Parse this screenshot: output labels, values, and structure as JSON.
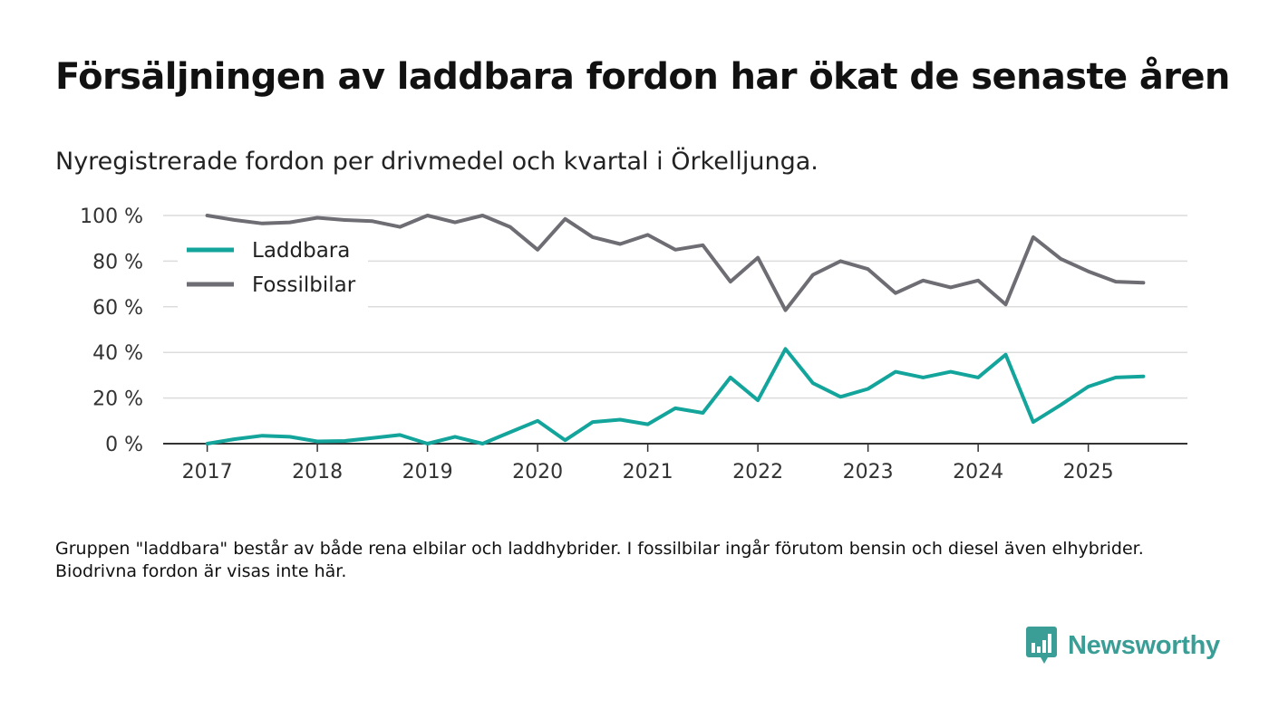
{
  "title": "Försäljningen av laddbara fordon har ökat de senaste åren",
  "subtitle": "Nyregistrerade fordon per drivmedel och kvartal i Örkelljunga.",
  "footnote": "Gruppen \"laddbara\" består av både rena elbilar och laddhybrider. I fossilbilar ingår förutom bensin och diesel även elhybrider. Biodrivna fordon är visas inte här.",
  "brand": {
    "name": "Newsworthy",
    "color": "#3a9e96"
  },
  "colors": {
    "laddbara": "#13a59c",
    "fossil": "#6e6d73",
    "grid": "#dcdcdc",
    "axis": "#333333"
  },
  "chart_data": {
    "type": "line",
    "title": "Försäljningen av laddbara fordon har ökat de senaste åren",
    "xlabel": "",
    "ylabel": "",
    "x_start": 2017,
    "x_step": 0.25,
    "xlim": [
      2016.6,
      2025.9
    ],
    "ylim": [
      0,
      100
    ],
    "y_ticks": [
      0,
      20,
      40,
      60,
      80,
      100
    ],
    "y_tick_labels": [
      "0 %",
      "20 %",
      "40 %",
      "60 %",
      "80 %",
      "100 %"
    ],
    "x_ticks": [
      2017,
      2018,
      2019,
      2020,
      2021,
      2022,
      2023,
      2024,
      2025
    ],
    "x_tick_labels": [
      "2017",
      "2018",
      "2019",
      "2020",
      "2021",
      "2022",
      "2023",
      "2024",
      "2025"
    ],
    "legend_position": "top-left",
    "series": [
      {
        "name": "Laddbara",
        "color": "#13a59c",
        "values": [
          0,
          2,
          3.5,
          3,
          1,
          1.2,
          2.5,
          3.8,
          0,
          3,
          0,
          5,
          10,
          1.5,
          9.5,
          10.5,
          8.5,
          15.5,
          13.5,
          29,
          19,
          41.5,
          26.5,
          20.5,
          24,
          31.5,
          29,
          31.5,
          29,
          39,
          9.5,
          17,
          25,
          29,
          29.5
        ]
      },
      {
        "name": "Fossilbilar",
        "color": "#6e6d73",
        "values": [
          100,
          98,
          96.5,
          97,
          99,
          98,
          97.5,
          95,
          100,
          97,
          100,
          95,
          85,
          98.5,
          90.5,
          87.5,
          91.5,
          85,
          87,
          71,
          81.5,
          58.5,
          74,
          80,
          76.5,
          66,
          71.5,
          68.5,
          71.5,
          61,
          90.5,
          81,
          75.5,
          71,
          70.5
        ]
      }
    ]
  }
}
